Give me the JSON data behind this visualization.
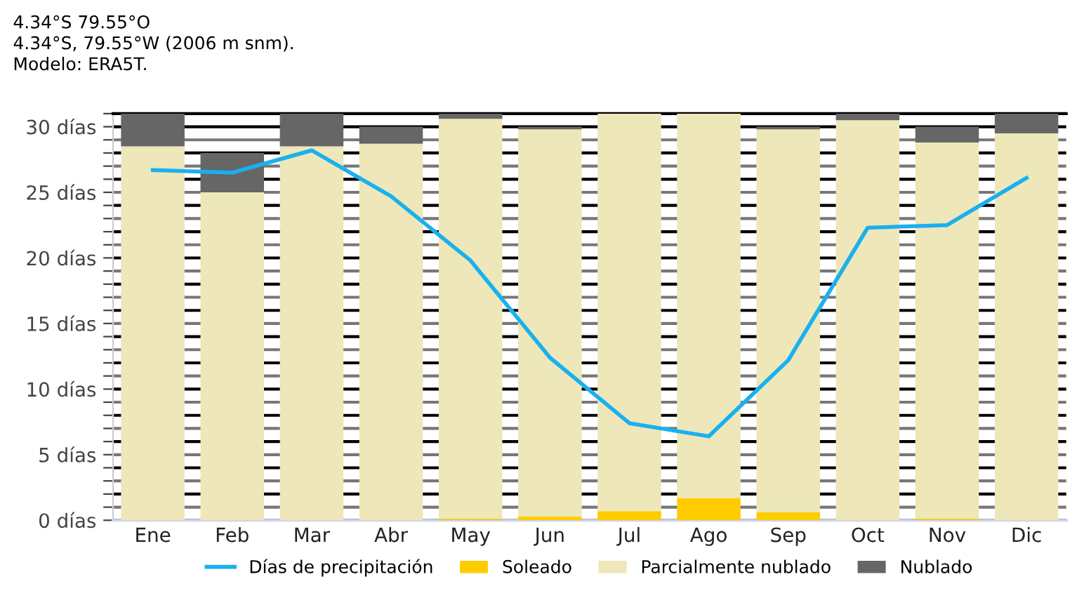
{
  "chart_data": {
    "type": "bar",
    "stacked": true,
    "title": "4.34°S 79.55°O",
    "subtitle": "4.34°S, 79.55°W (2006 m snm).",
    "annotations": [
      "Modelo: ERA5T."
    ],
    "categories": [
      "Ene",
      "Feb",
      "Mar",
      "Abr",
      "May",
      "Jun",
      "Jul",
      "Ago",
      "Sep",
      "Oct",
      "Nov",
      "Dic"
    ],
    "series": [
      {
        "name": "Soleado",
        "color": "#ffcc00",
        "values": [
          0,
          0,
          0,
          0,
          0.1,
          0.3,
          0.7,
          1.7,
          0.6,
          0,
          0.1,
          0
        ]
      },
      {
        "name": "Parcialmente nublado",
        "color": "#ede7b9",
        "values": [
          28.5,
          25,
          28.5,
          28.7,
          30.5,
          29.5,
          30.3,
          29.3,
          29.2,
          30.5,
          28.7,
          29.5
        ]
      },
      {
        "name": "Nublado",
        "color": "#666666",
        "values": [
          2.5,
          3,
          2.5,
          1.3,
          0.4,
          0.2,
          0,
          0,
          0.2,
          0.5,
          1.2,
          1.5
        ]
      },
      {
        "name": "Días de precipitación",
        "type": "line",
        "color": "#1ab0f0",
        "values": [
          26.7,
          26.5,
          28.2,
          24.7,
          19.8,
          12.4,
          7.4,
          6.4,
          12.2,
          22.3,
          22.5,
          26.1
        ]
      }
    ],
    "ylim": [
      0,
      31
    ],
    "yticks": [
      {
        "value": 0,
        "label": "0 días"
      },
      {
        "value": 1,
        "label": null
      },
      {
        "value": 2,
        "label": null
      },
      {
        "value": 3,
        "label": null
      },
      {
        "value": 4,
        "label": null
      },
      {
        "value": 5,
        "label": "5 días"
      },
      {
        "value": 6,
        "label": null
      },
      {
        "value": 7,
        "label": null
      },
      {
        "value": 8,
        "label": null
      },
      {
        "value": 9,
        "label": null
      },
      {
        "value": 10,
        "label": "10 días"
      },
      {
        "value": 11,
        "label": null
      },
      {
        "value": 12,
        "label": null
      },
      {
        "value": 13,
        "label": null
      },
      {
        "value": 14,
        "label": null
      },
      {
        "value": 15,
        "label": "15 días"
      },
      {
        "value": 16,
        "label": null
      },
      {
        "value": 17,
        "label": null
      },
      {
        "value": 18,
        "label": null
      },
      {
        "value": 19,
        "label": null
      },
      {
        "value": 20,
        "label": "20 días"
      },
      {
        "value": 21,
        "label": null
      },
      {
        "value": 22,
        "label": null
      },
      {
        "value": 23,
        "label": null
      },
      {
        "value": 24,
        "label": null
      },
      {
        "value": 25,
        "label": "25 días"
      },
      {
        "value": 26,
        "label": null
      },
      {
        "value": 27,
        "label": null
      },
      {
        "value": 28,
        "label": null
      },
      {
        "value": 29,
        "label": null
      },
      {
        "value": 30,
        "label": "30 días"
      },
      {
        "value": 31,
        "label": null
      }
    ],
    "grid": "y",
    "legend": "bottom",
    "line_style": "solid",
    "marker": "none"
  }
}
